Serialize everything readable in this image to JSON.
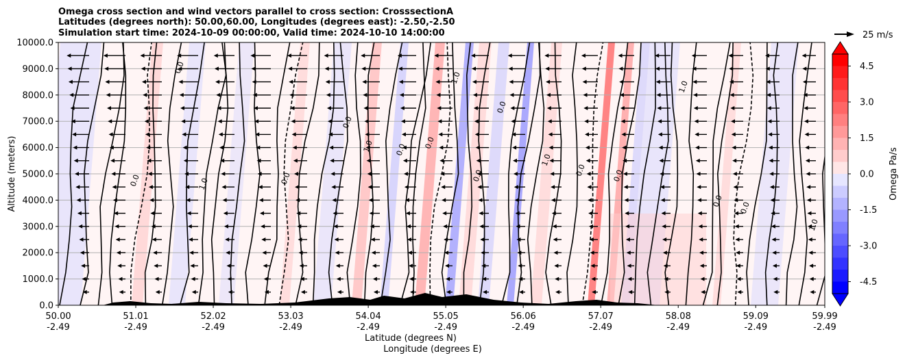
{
  "chart_data": {
    "type": "heatmap",
    "title_lines": [
      "Omega cross section and wind vectors parallel to cross section: CrosssectionA",
      "Latitudes (degrees north): 50.00,60.00, Longitudes (degrees east): -2.50,-2.50",
      "Simulation start time: 2024-10-09 00:00:00, Valid time: 2024-10-10 14:00:00"
    ],
    "ylabel": "Altitude (meters)",
    "xlabel_lat": "Latitude (degrees N)",
    "xlabel_lon": "Longitude (degrees E)",
    "ylim": [
      0,
      10000
    ],
    "xlim": [
      50.0,
      59.99
    ],
    "yticks": [
      "0.0",
      "1000.0",
      "2000.0",
      "3000.0",
      "4000.0",
      "5000.0",
      "6000.0",
      "7000.0",
      "8000.0",
      "9000.0",
      "10000.0"
    ],
    "xticks": [
      {
        "lat": "50.00",
        "lon": "-2.49"
      },
      {
        "lat": "51.01",
        "lon": "-2.49"
      },
      {
        "lat": "52.02",
        "lon": "-2.49"
      },
      {
        "lat": "53.03",
        "lon": "-2.49"
      },
      {
        "lat": "54.04",
        "lon": "-2.49"
      },
      {
        "lat": "55.05",
        "lon": "-2.49"
      },
      {
        "lat": "56.06",
        "lon": "-2.49"
      },
      {
        "lat": "57.07",
        "lon": "-2.49"
      },
      {
        "lat": "58.08",
        "lon": "-2.49"
      },
      {
        "lat": "59.09",
        "lon": "-2.49"
      },
      {
        "lat": "59.99",
        "lon": "-2.49"
      }
    ],
    "grid": true,
    "colorbar": {
      "label": "Omega Pa/s",
      "range": [
        -5,
        5
      ],
      "levels": 20,
      "extend": "both",
      "ticks": [
        "-4.5",
        "-3.0",
        "-1.5",
        "0.0",
        "1.5",
        "3.0",
        "4.5"
      ],
      "neg_color": "#0000ff",
      "pos_color": "#ff0000"
    },
    "quiver_key": {
      "label": "25 m/s",
      "speed": 25
    },
    "contour_labels": [
      "0.0",
      "1.0",
      "-1.0"
    ],
    "terrain_color": "#000000"
  }
}
